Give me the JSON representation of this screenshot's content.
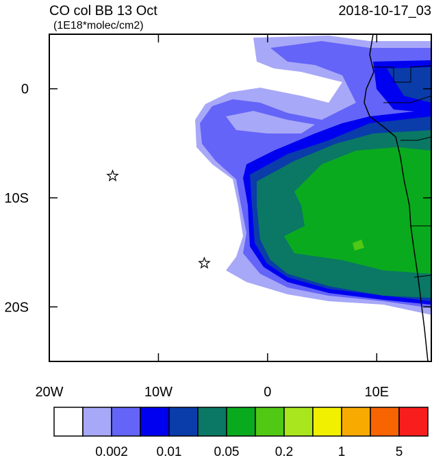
{
  "title": "CO col BB 13 Oct",
  "subtitle": "(1E18*molec/cm2)",
  "date": "2018-10-17_03",
  "map": {
    "lonlim": [
      -20,
      15
    ],
    "latlim": [
      -25,
      5
    ],
    "lonticks": [
      {
        "value": -20,
        "label": "20W"
      },
      {
        "value": -10,
        "label": "10W"
      },
      0,
      {
        "value": 10,
        "label": "10E"
      }
    ],
    "latticks": [
      0,
      {
        "value": -10,
        "label": "10S"
      },
      {
        "value": -20,
        "label": "20S"
      }
    ],
    "markers": [
      {
        "lon": -14.2,
        "lat": -8
      },
      {
        "lon": -5.8,
        "lat": -16
      }
    ]
  },
  "colorbar": {
    "colors": [
      "#ffffff",
      "#a8a8f8",
      "#6464f8",
      "#0000f0",
      "#0a3caa",
      "#0a7864",
      "#0aaa1e",
      "#50c814",
      "#aae61e",
      "#f0f000",
      "#f8aa00",
      "#f86400",
      "#f81e1e"
    ],
    "ticks": [
      0.002,
      0.01,
      0.05,
      0.2,
      1,
      5
    ]
  }
}
